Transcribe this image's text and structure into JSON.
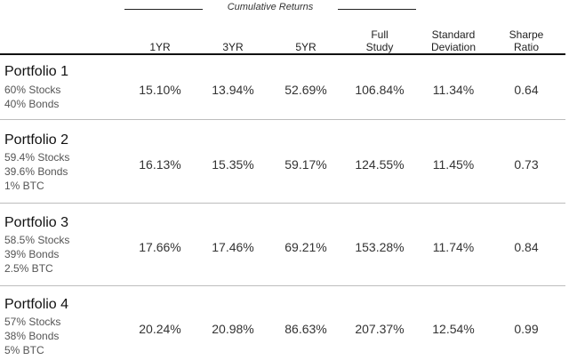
{
  "group_header": "Cumulative Returns",
  "columns": [
    "1YR",
    "3YR",
    "5YR",
    "Full Study",
    "Standard Deviation",
    "Sharpe Ratio"
  ],
  "column_lines": [
    [
      "1YR"
    ],
    [
      "3YR"
    ],
    [
      "5YR"
    ],
    [
      "Full",
      "Study"
    ],
    [
      "Standard",
      "Deviation"
    ],
    [
      "Sharpe",
      "Ratio"
    ]
  ],
  "rows": [
    {
      "name": "Portfolio 1",
      "allocation": [
        "60% Stocks",
        "40% Bonds"
      ],
      "values": [
        "15.10%",
        "13.94%",
        "52.69%",
        "106.84%",
        "11.34%",
        "0.64"
      ]
    },
    {
      "name": "Portfolio 2",
      "allocation": [
        "59.4% Stocks",
        "39.6% Bonds",
        "1% BTC"
      ],
      "values": [
        "16.13%",
        "15.35%",
        "59.17%",
        "124.55%",
        "11.45%",
        "0.73"
      ]
    },
    {
      "name": "Portfolio 3",
      "allocation": [
        "58.5% Stocks",
        "39% Bonds",
        "2.5% BTC"
      ],
      "values": [
        "17.66%",
        "17.46%",
        "69.21%",
        "153.28%",
        "11.74%",
        "0.84"
      ]
    },
    {
      "name": "Portfolio 4",
      "allocation": [
        "57% Stocks",
        "38% Bonds",
        "5% BTC"
      ],
      "values": [
        "20.24%",
        "20.98%",
        "86.63%",
        "207.37%",
        "12.54%",
        "0.99"
      ]
    }
  ]
}
